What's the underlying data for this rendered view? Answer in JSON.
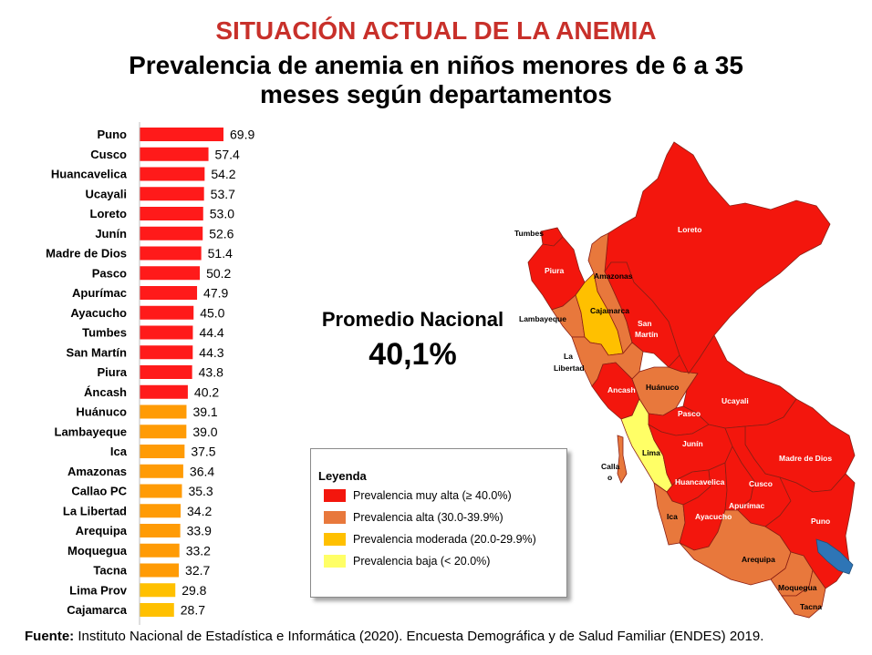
{
  "title": "SITUACIÓN ACTUAL DE LA ANEMIA",
  "subtitle_line1": "Prevalencia de anemia en niños menores de 6 a 35",
  "subtitle_line2": "meses según departamentos",
  "colors": {
    "muy_alta": "#ff1a1a",
    "alta": "#ff9b05",
    "moderada": "#ffc000",
    "map_muy_alta": "#f3160d",
    "map_alta": "#e8783c",
    "map_moderada": "#ffc000",
    "map_baja": "#ffff66",
    "title_red": "#c8302a",
    "lake": "#2e75b6"
  },
  "chart_data": {
    "type": "bar",
    "orientation": "horizontal",
    "categories": [
      "Puno",
      "Cusco",
      "Huancavelica",
      "Ucayali",
      "Loreto",
      "Junín",
      "Madre de Dios",
      "Pasco",
      "Apurímac",
      "Ayacucho",
      "Tumbes",
      "San Martín",
      "Piura",
      "Áncash",
      "Huánuco",
      "Lambayeque",
      "Ica",
      "Amazonas",
      "Callao PC",
      "La Libertad",
      "Arequipa",
      "Moquegua",
      "Tacna",
      "Lima Prov",
      "Cajamarca"
    ],
    "values": [
      69.9,
      57.4,
      54.2,
      53.7,
      53.0,
      52.6,
      51.4,
      50.2,
      47.9,
      45.0,
      44.4,
      44.3,
      43.8,
      40.2,
      39.1,
      39.0,
      37.5,
      36.4,
      35.3,
      34.2,
      33.9,
      33.2,
      32.7,
      29.8,
      28.7
    ],
    "value_labels": [
      "69.9",
      "57.4",
      "54.2",
      "53.7",
      "53.0",
      "52.6",
      "51.4",
      "50.2",
      "47.9",
      "45.0",
      "44.4",
      "44.3",
      "43.8",
      "40.2",
      "39.1",
      "39.0",
      "37.5",
      "36.4",
      "35.3",
      "34.2",
      "33.9",
      "33.2",
      "32.7",
      "29.8",
      "28.7"
    ],
    "color_groups": [
      "muy_alta",
      "muy_alta",
      "muy_alta",
      "muy_alta",
      "muy_alta",
      "muy_alta",
      "muy_alta",
      "muy_alta",
      "muy_alta",
      "muy_alta",
      "muy_alta",
      "muy_alta",
      "muy_alta",
      "muy_alta",
      "alta",
      "alta",
      "alta",
      "alta",
      "alta",
      "alta",
      "alta",
      "alta",
      "alta",
      "moderada",
      "moderada"
    ],
    "grid": false
  },
  "promedio_label": "Promedio Nacional",
  "promedio_value": "40,1%",
  "legend": {
    "title": "Leyenda",
    "items": [
      {
        "label": "Prevalencia muy alta (≥ 40.0%)",
        "color": "#f3160d"
      },
      {
        "label": "Prevalencia alta (30.0-39.9%)",
        "color": "#e8783c"
      },
      {
        "label": "Prevalencia moderada (20.0-29.9%)",
        "color": "#ffc000"
      },
      {
        "label": "Prevalencia baja (< 20.0%)",
        "color": "#ffff66"
      }
    ]
  },
  "map_labels": {
    "tumbes": "Tumbes",
    "piura": "Piura",
    "amazonas": "Amazonas",
    "loreto": "Loreto",
    "lambayeque": "Lambayeque",
    "cajamarca": "Cajamarca",
    "san_martin_1": "San",
    "san_martin_2": "Martín",
    "la_libertad_1": "La",
    "la_libertad_2": "Libertad",
    "ancash": "Ancash",
    "huanuco": "Huánuco",
    "ucayali": "Ucayali",
    "pasco": "Pasco",
    "lima": "Lima",
    "junin": "Junín",
    "madre_de_dios": "Madre de Dios",
    "callao_1": "Calla",
    "callao_2": "o",
    "huancavelica": "Huancavelica",
    "cusco": "Cusco",
    "apurimac": "Apurímac",
    "ica": "Ica",
    "ayacucho": "Ayacucho",
    "puno": "Puno",
    "arequipa": "Arequipa",
    "moquegua": "Moquegua",
    "tacna": "Tacna"
  },
  "footer_label": "Fuente:",
  "footer_text": " Instituto Nacional de Estadística e Informática (2020). Encuesta Demográfica y de Salud Familiar (ENDES) 2019."
}
